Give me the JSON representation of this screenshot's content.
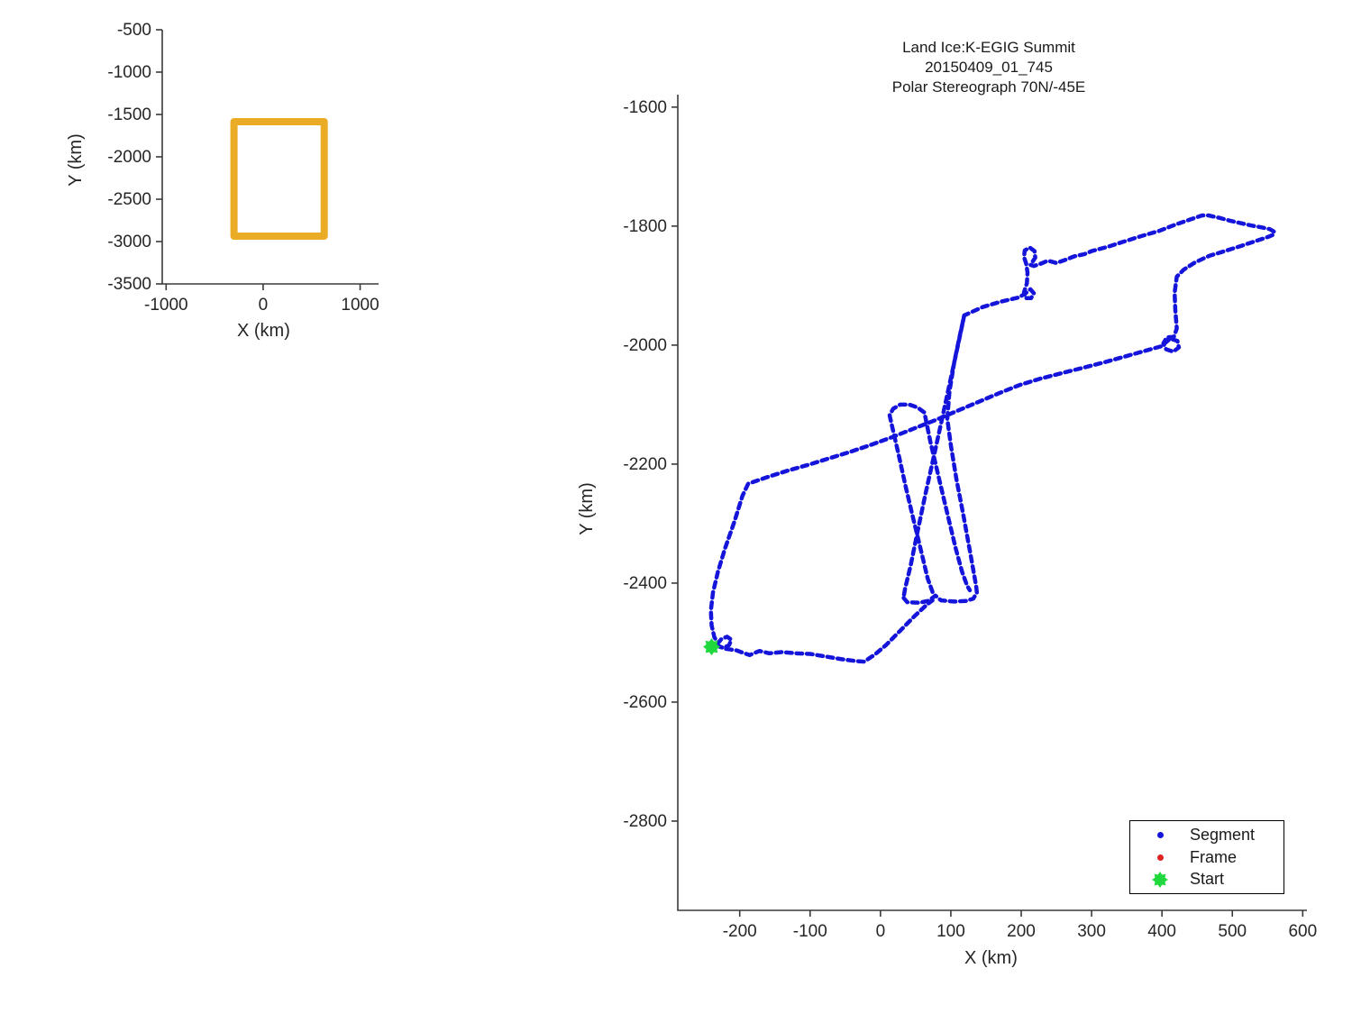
{
  "figure": {
    "background": "#ffffff"
  },
  "chart_data": [
    {
      "type": "line",
      "name": "overview-coverage-plot",
      "title": "",
      "xlabel": "X (km)",
      "ylabel": "Y (km)",
      "xticks": [
        -1000,
        0,
        1000
      ],
      "yticks": [
        -500,
        -1000,
        -1500,
        -2000,
        -2500,
        -3000,
        -3500
      ],
      "xlim": [
        -1040,
        1190
      ],
      "ylim": [
        -500,
        -3500
      ],
      "grid": false,
      "series": [
        {
          "name": "coverage-box",
          "color": "#EBAC25",
          "line_width": 8,
          "closed": true,
          "dash": "",
          "polylines": [
            [
              [
                -300,
                -1585
              ],
              [
                630,
                -1585
              ],
              [
                630,
                -2936
              ],
              [
                -300,
                -2936
              ]
            ]
          ]
        }
      ]
    },
    {
      "type": "line",
      "name": "flight-track-plot",
      "title_lines": [
        "Land Ice:K-EGIG Summit",
        "20150409_01_745",
        "Polar Stereograph 70N/-45E"
      ],
      "xlabel": "X (km)",
      "ylabel": "Y (km)",
      "xticks": [
        -200,
        -100,
        0,
        100,
        200,
        300,
        400,
        500,
        600
      ],
      "yticks": [
        -1600,
        -1800,
        -2000,
        -2200,
        -2400,
        -2600,
        -2800
      ],
      "xlim": [
        -288,
        606
      ],
      "ylim": [
        -1579,
        -2950
      ],
      "grid": false,
      "track_color": "#1414DB",
      "frame_color": "#E02222",
      "start_color": "#1FD83C",
      "start_point": [
        -240,
        -2507
      ],
      "legend": {
        "items": [
          {
            "label": "Segment",
            "marker": "dot",
            "color": "#1414DB"
          },
          {
            "label": "Frame",
            "marker": "dot",
            "color": "#E02222"
          },
          {
            "label": "Start",
            "marker": "star",
            "color": "#1FD83C"
          }
        ]
      },
      "series": [
        {
          "name": "segment-track",
          "color": "#1414DB",
          "line_width": 4.5,
          "dash": "6.5 5",
          "polylines": [
            [
              [
                -233,
                -2504
              ],
              [
                -222,
                -2510
              ],
              [
                -205,
                -2513
              ],
              [
                -186,
                -2521
              ],
              [
                -172,
                -2514
              ],
              [
                -158,
                -2518
              ],
              [
                -140,
                -2516
              ],
              [
                -120,
                -2518
              ],
              [
                -100,
                -2519
              ],
              [
                -80,
                -2523
              ],
              [
                -55,
                -2528
              ],
              [
                -35,
                -2531
              ],
              [
                -23,
                -2532
              ],
              [
                -8,
                -2520
              ],
              [
                8,
                -2504
              ],
              [
                28,
                -2480
              ],
              [
                48,
                -2456
              ],
              [
                66,
                -2436
              ],
              [
                74,
                -2429
              ]
            ],
            [
              [
                33,
                -2425
              ],
              [
                38,
                -2432
              ],
              [
                55,
                -2433
              ],
              [
                68,
                -2430
              ],
              [
                78,
                -2421
              ],
              [
                86,
                -2429
              ],
              [
                105,
                -2431
              ],
              [
                122,
                -2430
              ],
              [
                132,
                -2426
              ],
              [
                137,
                -2416
              ],
              [
                136,
                -2405
              ],
              [
                128,
                -2352
              ],
              [
                118,
                -2287
              ],
              [
                108,
                -2226
              ],
              [
                100,
                -2168
              ],
              [
                95,
                -2124
              ],
              [
                98,
                -2078
              ],
              [
                105,
                -2028
              ],
              [
                112,
                -1988
              ],
              [
                119,
                -1950
              ],
              [
                145,
                -1936
              ],
              [
                171,
                -1927
              ],
              [
                196,
                -1920
              ],
              [
                205,
                -1914
              ],
              [
                213,
                -1906
              ],
              [
                218,
                -1913
              ],
              [
                214,
                -1921
              ],
              [
                206,
                -1921
              ],
              [
                204,
                -1911
              ],
              [
                208,
                -1896
              ],
              [
                209,
                -1878
              ],
              [
                207,
                -1863
              ],
              [
                204,
                -1852
              ],
              [
                205,
                -1841
              ],
              [
                212,
                -1836
              ],
              [
                219,
                -1842
              ],
              [
                220,
                -1853
              ],
              [
                213,
                -1865
              ],
              [
                218,
                -1867
              ],
              [
                228,
                -1863
              ],
              [
                238,
                -1858
              ],
              [
                250,
                -1862
              ],
              [
                262,
                -1857
              ],
              [
                275,
                -1851
              ],
              [
                290,
                -1847
              ],
              [
                300,
                -1842
              ],
              [
                322,
                -1835
              ],
              [
                346,
                -1826
              ],
              [
                370,
                -1817
              ],
              [
                396,
                -1808
              ],
              [
                420,
                -1797
              ],
              [
                442,
                -1788
              ],
              [
                457,
                -1782
              ],
              [
                466,
                -1782
              ],
              [
                481,
                -1786
              ],
              [
                497,
                -1791
              ],
              [
                512,
                -1795
              ],
              [
                527,
                -1799
              ],
              [
                541,
                -1802
              ],
              [
                553,
                -1805
              ],
              [
                559,
                -1809
              ],
              [
                559,
                -1814
              ],
              [
                551,
                -1818
              ],
              [
                536,
                -1824
              ],
              [
                513,
                -1833
              ],
              [
                489,
                -1842
              ],
              [
                467,
                -1850
              ],
              [
                447,
                -1861
              ],
              [
                431,
                -1873
              ],
              [
                421,
                -1885
              ],
              [
                418,
                -1912
              ],
              [
                419,
                -1942
              ],
              [
                421,
                -1972
              ],
              [
                417,
                -1986
              ],
              [
                407,
                -1987
              ],
              [
                402,
                -1997
              ],
              [
                406,
                -2007
              ],
              [
                416,
                -2011
              ],
              [
                424,
                -2004
              ],
              [
                422,
                -1993
              ],
              [
                412,
                -1989
              ],
              [
                399,
                -2002
              ],
              [
                378,
                -2009
              ],
              [
                348,
                -2019
              ],
              [
                318,
                -2029
              ],
              [
                288,
                -2038
              ],
              [
                258,
                -2047
              ],
              [
                228,
                -2056
              ],
              [
                198,
                -2067
              ],
              [
                168,
                -2081
              ],
              [
                138,
                -2096
              ],
              [
                108,
                -2111
              ],
              [
                78,
                -2126
              ],
              [
                48,
                -2140
              ],
              [
                18,
                -2154
              ],
              [
                -12,
                -2167
              ],
              [
                -42,
                -2179
              ],
              [
                -72,
                -2190
              ],
              [
                -102,
                -2201
              ],
              [
                -132,
                -2211
              ],
              [
                -161,
                -2222
              ],
              [
                -188,
                -2233
              ],
              [
                -196,
                -2253
              ],
              [
                -208,
                -2298
              ],
              [
                -221,
                -2342
              ],
              [
                -231,
                -2381
              ],
              [
                -238,
                -2416
              ],
              [
                -241,
                -2446
              ],
              [
                -240,
                -2471
              ],
              [
                -236,
                -2491
              ],
              [
                -231,
                -2501
              ],
              [
                -226,
                -2494
              ],
              [
                -218,
                -2490
              ],
              [
                -212,
                -2495
              ],
              [
                -215,
                -2504
              ],
              [
                -223,
                -2509
              ],
              [
                -231,
                -2506
              ]
            ],
            [
              [
                119,
                -1950
              ],
              [
                109,
                -2006
              ],
              [
                98,
                -2066
              ],
              [
                88,
                -2121
              ],
              [
                76,
                -2186
              ],
              [
                64,
                -2250
              ],
              [
                53,
                -2312
              ],
              [
                43,
                -2370
              ],
              [
                35,
                -2409
              ],
              [
                33,
                -2423
              ]
            ],
            [
              [
                74,
                -2415
              ],
              [
                67,
                -2392
              ],
              [
                58,
                -2347
              ],
              [
                47,
                -2294
              ],
              [
                36,
                -2239
              ],
              [
                25,
                -2180
              ],
              [
                16,
                -2134
              ],
              [
                13,
                -2118
              ],
              [
                18,
                -2107
              ],
              [
                28,
                -2100
              ],
              [
                41,
                -2100
              ],
              [
                53,
                -2105
              ],
              [
                62,
                -2113
              ],
              [
                64,
                -2122
              ],
              [
                71,
                -2163
              ],
              [
                80,
                -2208
              ],
              [
                89,
                -2253
              ],
              [
                98,
                -2298
              ],
              [
                107,
                -2342
              ],
              [
                116,
                -2381
              ],
              [
                123,
                -2404
              ],
              [
                127,
                -2412
              ]
            ]
          ]
        }
      ]
    }
  ]
}
